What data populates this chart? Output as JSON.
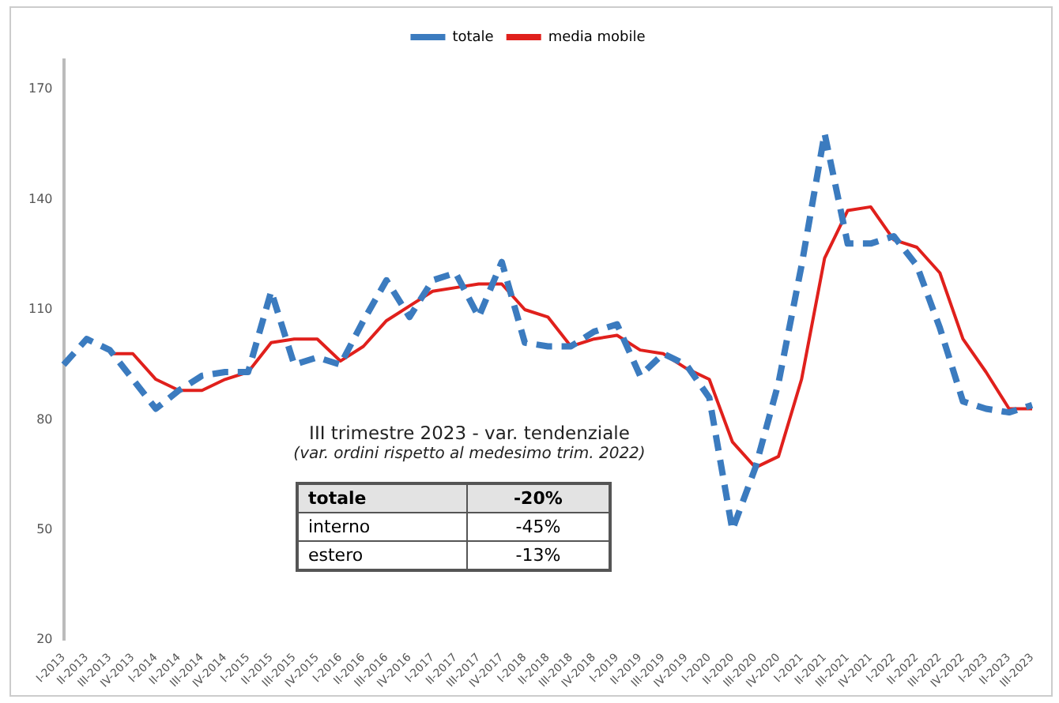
{
  "chart_data": {
    "type": "line",
    "categories": [
      "I-2013",
      "II-2013",
      "III-2013",
      "IV-2013",
      "I-2014",
      "II-2014",
      "III-2014",
      "IV-2014",
      "I-2015",
      "II-2015",
      "III-2015",
      "IV-2015",
      "I-2016",
      "II-2016",
      "III-2016",
      "IV-2016",
      "I-2017",
      "II-2017",
      "III-2017",
      "IV-2017",
      "I-2018",
      "II-2018",
      "III-2018",
      "IV-2018",
      "I-2019",
      "II-2019",
      "III-2019",
      "IV-2019",
      "I-2020",
      "II-2020",
      "III-2020",
      "IV-2020",
      "I-2021",
      "II-2021",
      "III-2021",
      "IV-2021",
      "I-2022",
      "II-2022",
      "III-2022",
      "IV-2022",
      "I-2023",
      "II-2023",
      "III-2023"
    ],
    "series": [
      {
        "name": "totale",
        "color": "#3b7bbf",
        "line_style": "dashed",
        "values": [
          95,
          102,
          99,
          91,
          83,
          88,
          92,
          93,
          93,
          115,
          95,
          97,
          95,
          107,
          118,
          108,
          118,
          120,
          108,
          123,
          101,
          100,
          100,
          104,
          106,
          92,
          98,
          95,
          86,
          50,
          67,
          90,
          122,
          158,
          128,
          128,
          130,
          122,
          105,
          85,
          83,
          82,
          84
        ]
      },
      {
        "name": "media mobile",
        "color": "#e0201c",
        "line_style": "solid",
        "values": [
          null,
          null,
          98,
          98,
          91,
          88,
          88,
          91,
          93,
          101,
          102,
          102,
          96,
          100,
          107,
          111,
          115,
          116,
          117,
          117,
          110,
          108,
          100,
          102,
          103,
          99,
          98,
          94,
          91,
          74,
          67,
          70,
          91,
          124,
          137,
          138,
          129,
          127,
          120,
          102,
          93,
          83,
          83
        ]
      }
    ],
    "ylim": [
      20,
      178
    ],
    "yticks": [
      20,
      50,
      80,
      110,
      140,
      170
    ],
    "grid": false,
    "legend": "top",
    "marker": "none",
    "annotations": [
      "III trimestre 2023 - var. tendenziale",
      "(var. ordini rispetto al medesimo trim. 2022)",
      "totale",
      "-20%",
      "interno",
      "-45%",
      "estero",
      "-13%"
    ]
  }
}
